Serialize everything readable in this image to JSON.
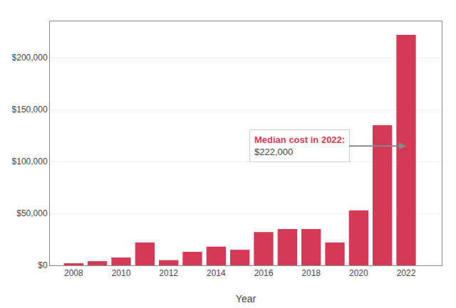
{
  "chart_data": {
    "type": "bar",
    "xlabel": "Year",
    "x": [
      2008,
      2009,
      2010,
      2011,
      2012,
      2013,
      2014,
      2015,
      2016,
      2017,
      2018,
      2019,
      2020,
      2021,
      2022
    ],
    "values": [
      2000,
      4000,
      7500,
      22000,
      5000,
      13000,
      18000,
      15000,
      32000,
      35000,
      35000,
      22000,
      53000,
      135000,
      222000
    ],
    "color": "#d43a55",
    "xlim": [
      2007.0,
      2023.5
    ],
    "xticks": [
      2008,
      2010,
      2012,
      2014,
      2016,
      2018,
      2020,
      2022
    ],
    "ylim": [
      0,
      235000
    ],
    "yticks": [
      {
        "value": 0,
        "label": "$0"
      },
      {
        "value": 50000,
        "label": "$50,000"
      },
      {
        "value": 100000,
        "label": "$100,000"
      },
      {
        "value": 150000,
        "label": "$150,000"
      },
      {
        "value": 200000,
        "label": "$200,000"
      }
    ],
    "grid": "y",
    "annotations": [
      {
        "title": "Median cost in 2022:",
        "text": "$222,000",
        "color": "#d43a55",
        "x": 2022,
        "y": 115000
      }
    ]
  }
}
